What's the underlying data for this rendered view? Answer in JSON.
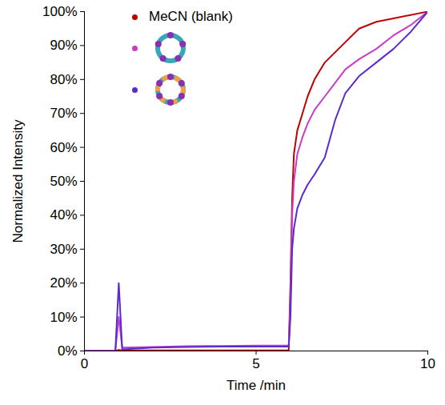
{
  "chart_data": {
    "type": "line",
    "x_label": "Time /min",
    "y_label": "Normalized Intensity",
    "x": [
      0,
      0.9,
      1.0,
      1.1,
      2,
      3,
      4,
      5,
      5.95,
      6.0,
      6.05,
      6.1,
      6.2,
      6.35,
      6.5,
      6.7,
      7.0,
      7.3,
      7.6,
      8.0,
      8.5,
      9.0,
      9.5,
      10
    ],
    "series": [
      {
        "name": "MeCN (blank)",
        "color": "#c00000",
        "values": [
          0,
          0,
          0.3,
          0.2,
          0.2,
          0.2,
          0.2,
          0.2,
          0.2,
          20,
          45,
          58,
          65,
          70,
          75,
          80,
          85,
          88,
          91,
          95,
          97,
          98,
          99,
          100
        ]
      },
      {
        "color": "#c83cc8",
        "values": [
          0,
          0,
          10,
          1,
          1.2,
          1.4,
          1.5,
          1.6,
          1.6,
          15,
          40,
          50,
          58,
          63,
          67,
          71,
          75,
          79,
          83,
          86,
          89,
          93,
          96,
          100
        ]
      },
      {
        "color": "#5a2ad1",
        "values": [
          0,
          0,
          20,
          0.5,
          1,
          1.2,
          1.3,
          1.3,
          1.3,
          10,
          30,
          36,
          42,
          46,
          49,
          52,
          57,
          68,
          76,
          81,
          85,
          89,
          94,
          100
        ]
      }
    ],
    "xlim": [
      0,
      10
    ],
    "xticks": [
      0,
      5,
      10
    ],
    "ylim": [
      0,
      100
    ],
    "yticks": [
      {
        "value": 0,
        "label": "0%"
      },
      {
        "value": 10,
        "label": "10%"
      },
      {
        "value": 20,
        "label": "20%"
      },
      {
        "value": 30,
        "label": "30%"
      },
      {
        "value": 40,
        "label": "40%"
      },
      {
        "value": 50,
        "label": "50%"
      },
      {
        "value": 60,
        "label": "60%"
      },
      {
        "value": 70,
        "label": "70%"
      },
      {
        "value": 80,
        "label": "80%"
      },
      {
        "value": 90,
        "label": "90%"
      },
      {
        "value": 100,
        "label": "100%"
      }
    ],
    "legend": "top-left",
    "grid": false
  }
}
